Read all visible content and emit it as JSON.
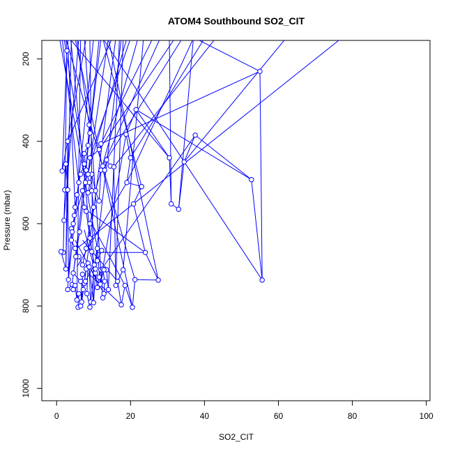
{
  "chart_data": {
    "type": "line",
    "title": "ATOM4 Southbound SO2_CIT",
    "xlabel": "SO2_CIT",
    "ylabel": "Pressure (mbar)",
    "xlim": [
      -4,
      101
    ],
    "ylim": [
      1030,
      155
    ],
    "y_reversed": true,
    "grid": false,
    "legend": "none",
    "colors": {
      "series": "#0000ff",
      "axis": "#000000"
    },
    "x_ticks": [
      0,
      20,
      40,
      60,
      80,
      100
    ],
    "y_ticks": [
      200,
      400,
      600,
      800,
      1000
    ],
    "series": [
      {
        "markers": "open-circle",
        "points": [
          [
            1.5,
            472
          ],
          [
            2.8,
            180
          ],
          [
            2.2,
            518
          ],
          [
            3.0,
            518
          ],
          [
            2.5,
            455
          ],
          [
            2.0,
            592
          ],
          [
            1.8,
            670
          ],
          [
            1.2,
            668
          ],
          [
            2.5,
            710
          ],
          [
            3.0,
            400
          ],
          [
            3.2,
            736
          ],
          [
            4.0,
            612
          ],
          [
            3.0,
            760
          ],
          [
            4.2,
            748
          ],
          [
            4.5,
            760
          ],
          [
            5.0,
            750
          ],
          [
            5.5,
            785
          ],
          [
            6.0,
            770
          ],
          [
            5.8,
            803
          ],
          [
            6.5,
            800
          ],
          [
            7.0,
            723
          ],
          [
            6.8,
            790
          ],
          [
            7.5,
            745
          ],
          [
            8.0,
            710
          ],
          [
            8.5,
            696
          ],
          [
            8.2,
            770
          ],
          [
            9.0,
            803
          ],
          [
            9.2,
            790
          ],
          [
            8.8,
            705
          ],
          [
            10.0,
            792
          ],
          [
            10.5,
            720
          ],
          [
            11.0,
            755
          ],
          [
            11.5,
            730
          ],
          [
            12.0,
            712
          ],
          [
            12.5,
            710
          ],
          [
            13.0,
            740
          ],
          [
            12.8,
            770
          ],
          [
            12.5,
            780
          ],
          [
            14.0,
            760
          ],
          [
            13.5,
            712
          ],
          [
            12.8,
            712
          ],
          [
            11.8,
            747
          ],
          [
            11.0,
            660
          ],
          [
            10.5,
            710
          ],
          [
            9.5,
            668
          ],
          [
            9.0,
            635
          ],
          [
            8.0,
            570
          ],
          [
            7.5,
            560
          ],
          [
            7.0,
            520
          ],
          [
            8.5,
            525
          ],
          [
            9.5,
            480
          ],
          [
            10.5,
            520
          ],
          [
            11.5,
            545
          ],
          [
            12.0,
            470
          ],
          [
            12.5,
            460
          ],
          [
            13.0,
            470
          ],
          [
            13.5,
            445
          ],
          [
            14.5,
            460
          ],
          [
            15.5,
            462
          ],
          [
            16.0,
            750
          ],
          [
            18.0,
            712
          ],
          [
            16.5,
            740
          ],
          [
            17.5,
            797
          ],
          [
            18.5,
            750
          ],
          [
            20.5,
            803
          ],
          [
            21.2,
            736
          ],
          [
            27.5,
            737
          ],
          [
            24.0,
            670
          ],
          [
            20.8,
            552
          ],
          [
            23.0,
            510
          ],
          [
            19.0,
            500
          ],
          [
            20.0,
            440
          ],
          [
            18.8,
            383
          ],
          [
            21.5,
            323
          ],
          [
            30.5,
            440
          ],
          [
            31.0,
            552
          ],
          [
            33.0,
            565
          ],
          [
            34.5,
            450
          ],
          [
            37.5,
            385
          ],
          [
            52.7,
            493
          ],
          [
            55.6,
            737
          ],
          [
            55.0,
            230
          ],
          [
            12.0,
            406
          ],
          [
            11.5,
            420
          ],
          [
            9.0,
            440
          ],
          [
            8.5,
            480
          ],
          [
            7.5,
            455
          ],
          [
            6.5,
            480
          ],
          [
            6.0,
            500
          ],
          [
            5.5,
            530
          ],
          [
            5.0,
            560
          ],
          [
            4.8,
            580
          ],
          [
            4.5,
            600
          ],
          [
            4.2,
            620
          ],
          [
            4.0,
            640
          ],
          [
            5.0,
            660
          ],
          [
            6.0,
            680
          ],
          [
            7.0,
            700
          ],
          [
            8.0,
            660
          ],
          [
            9.0,
            600
          ],
          [
            10.0,
            560
          ],
          [
            9.5,
            520
          ],
          [
            8.8,
            500
          ],
          [
            8.0,
            470
          ],
          [
            7.5,
            430
          ],
          [
            8.5,
            410
          ],
          [
            9.0,
            380
          ],
          [
            8.8,
            360
          ],
          [
            7.8,
            500
          ],
          [
            6.2,
            620
          ],
          [
            5.2,
            680
          ],
          [
            4.5,
            720
          ],
          [
            6.5,
            740
          ],
          [
            7.2,
            760
          ],
          [
            7.8,
            740
          ],
          [
            10.2,
            700
          ],
          [
            11.0,
            690
          ],
          [
            12.2,
            665
          ]
        ],
        "extra_segments": [
          [
            [
              55.0,
              230
            ],
            [
              37.5,
              150
            ]
          ],
          [
            [
              27.5,
              737
            ],
            [
              14.0,
              150
            ]
          ],
          [
            [
              55.6,
              737
            ],
            [
              12.5,
              150
            ]
          ],
          [
            [
              52.7,
              493
            ],
            [
              21.5,
              323
            ]
          ],
          [
            [
              31.0,
              552
            ],
            [
              30.5,
              150
            ]
          ],
          [
            [
              33.0,
              565
            ],
            [
              37.0,
              150
            ]
          ],
          [
            [
              34.5,
              450
            ],
            [
              62.0,
              150
            ]
          ],
          [
            [
              20.8,
              552
            ],
            [
              77.0,
              150
            ]
          ],
          [
            [
              23.0,
              510
            ],
            [
              12.5,
              150
            ]
          ],
          [
            [
              24.0,
              670
            ],
            [
              11.0,
              670
            ]
          ],
          [
            [
              21.2,
              736
            ],
            [
              2.5,
              150
            ]
          ],
          [
            [
              20.5,
              803
            ],
            [
              5.0,
              150
            ]
          ],
          [
            [
              18.8,
              383
            ],
            [
              11.5,
              760
            ]
          ],
          [
            [
              30.5,
              440
            ],
            [
              3.5,
              150
            ]
          ],
          [
            [
              37.5,
              385
            ],
            [
              13.0,
              700
            ]
          ],
          [
            [
              3.0,
              400
            ],
            [
              15.0,
              150
            ]
          ],
          [
            [
              1.5,
              472
            ],
            [
              8.0,
              150
            ]
          ],
          [
            [
              2.8,
              180
            ],
            [
              2.5,
              150
            ]
          ],
          [
            [
              2.0,
              592
            ],
            [
              6.0,
              150
            ]
          ],
          [
            [
              2.5,
              710
            ],
            [
              4.0,
              150
            ]
          ],
          [
            [
              3.2,
              736
            ],
            [
              10.0,
              150
            ]
          ],
          [
            [
              4.2,
              748
            ],
            [
              12.0,
              150
            ]
          ],
          [
            [
              5.5,
              785
            ],
            [
              6.5,
              150
            ]
          ],
          [
            [
              6.8,
              790
            ],
            [
              16.0,
              150
            ]
          ],
          [
            [
              9.2,
              790
            ],
            [
              17.5,
              150
            ]
          ],
          [
            [
              10.0,
              792
            ],
            [
              9.0,
              150
            ]
          ],
          [
            [
              12.5,
              780
            ],
            [
              7.5,
              150
            ]
          ],
          [
            [
              14.0,
              760
            ],
            [
              17.0,
              150
            ]
          ],
          [
            [
              16.0,
              750
            ],
            [
              18.0,
              150
            ]
          ],
          [
            [
              18.0,
              712
            ],
            [
              23.5,
              150
            ]
          ],
          [
            [
              19.0,
              500
            ],
            [
              37.0,
              150
            ]
          ],
          [
            [
              20.0,
              440
            ],
            [
              40.0,
              150
            ]
          ],
          [
            [
              12.0,
              406
            ],
            [
              26.0,
              150
            ]
          ],
          [
            [
              11.5,
              420
            ],
            [
              32.0,
              150
            ]
          ],
          [
            [
              9.0,
              440
            ],
            [
              20.0,
              150
            ]
          ],
          [
            [
              8.5,
              480
            ],
            [
              14.0,
              150
            ]
          ],
          [
            [
              6.0,
              500
            ],
            [
              1.5,
              150
            ]
          ],
          [
            [
              5.0,
              560
            ],
            [
              3.0,
              150
            ]
          ],
          [
            [
              4.5,
              600
            ],
            [
              19.0,
              150
            ]
          ],
          [
            [
              7.5,
              455
            ],
            [
              2.0,
              150
            ]
          ],
          [
            [
              10.5,
              520
            ],
            [
              22.0,
              150
            ]
          ],
          [
            [
              12.5,
              460
            ],
            [
              28.0,
              150
            ]
          ],
          [
            [
              15.5,
              462
            ],
            [
              43.0,
              150
            ]
          ],
          [
            [
              13.5,
              445
            ],
            [
              34.0,
              150
            ]
          ],
          [
            [
              9.0,
              380
            ],
            [
              11.5,
              150
            ]
          ],
          [
            [
              8.8,
              360
            ],
            [
              5.5,
              150
            ]
          ],
          [
            [
              11.0,
              660
            ],
            [
              0.8,
              150
            ]
          ],
          [
            [
              9.5,
              668
            ],
            [
              3.8,
              150
            ]
          ],
          [
            [
              17.5,
              797
            ],
            [
              8.5,
              720
            ]
          ],
          [
            [
              16.5,
              740
            ],
            [
              7.0,
              640
            ]
          ],
          [
            [
              12.8,
              770
            ],
            [
              5.0,
              640
            ]
          ],
          [
            [
              20.8,
              552
            ],
            [
              4.8,
              665
            ]
          ],
          [
            [
              24.0,
              670
            ],
            [
              7.0,
              560
            ]
          ],
          [
            [
              19.0,
              500
            ],
            [
              5.5,
              705
            ]
          ],
          [
            [
              18.5,
              750
            ],
            [
              9.5,
              600
            ]
          ],
          [
            [
              10.5,
              720
            ],
            [
              7.5,
              615
            ]
          ]
        ]
      }
    ]
  }
}
